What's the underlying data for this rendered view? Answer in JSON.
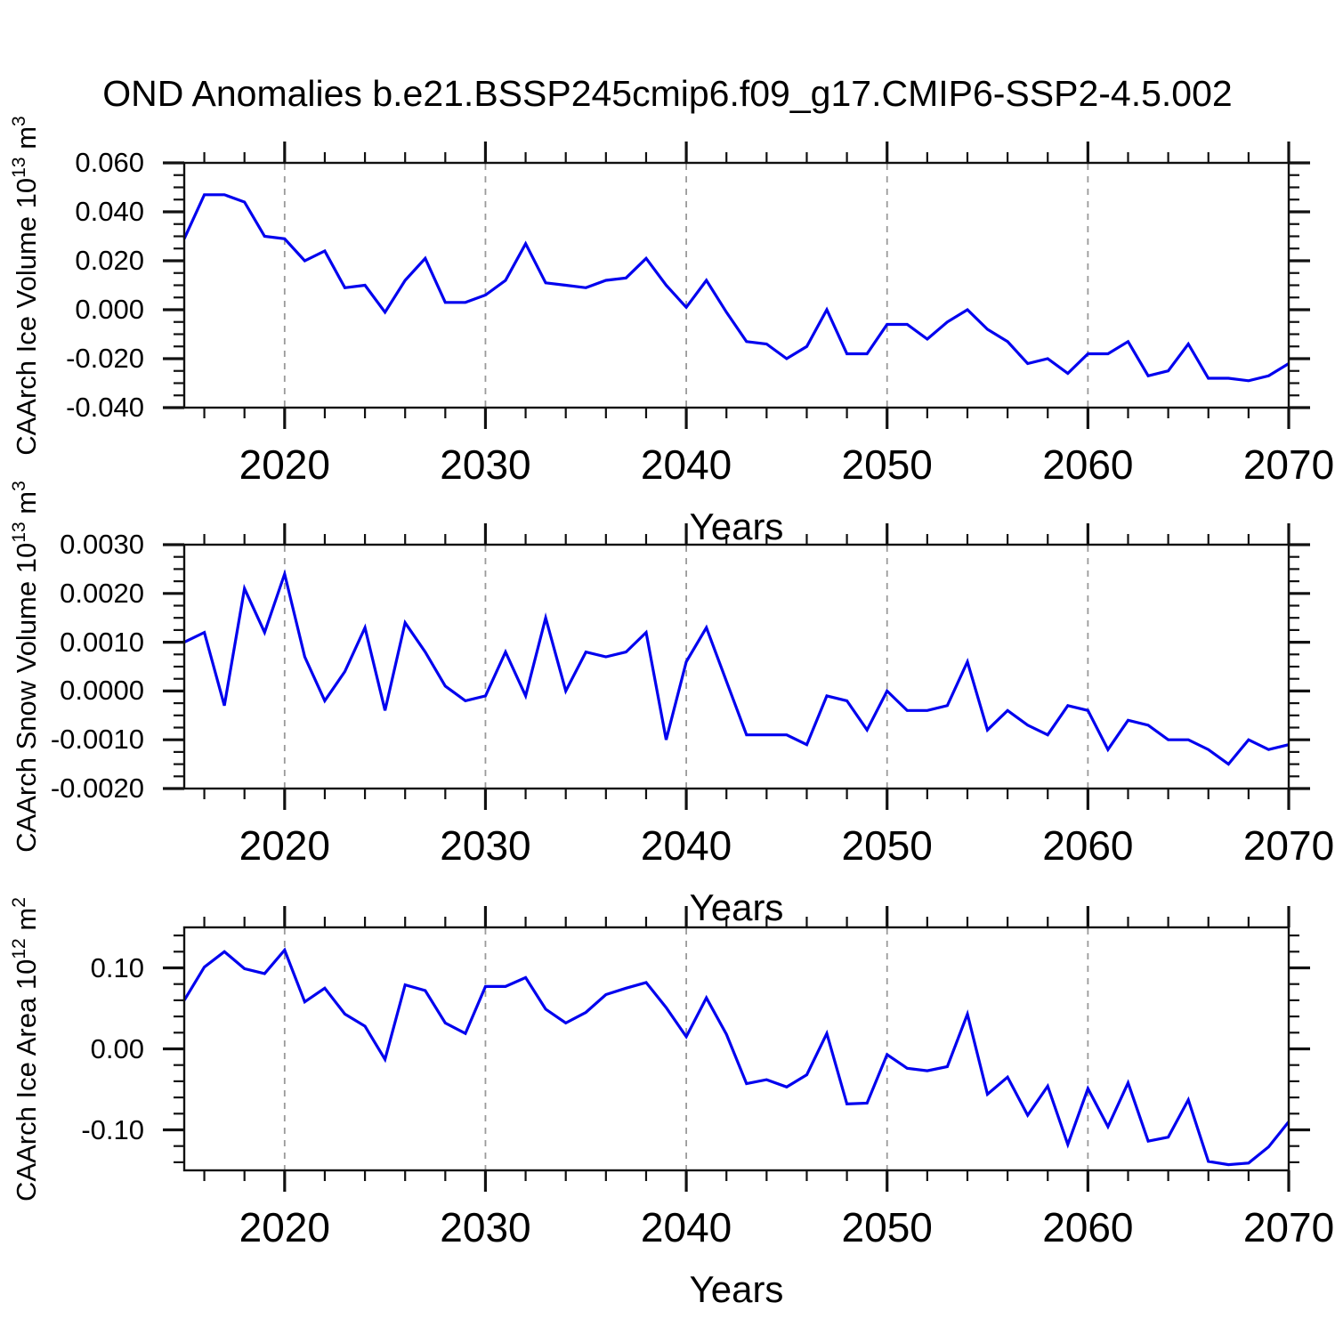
{
  "title": "OND Anomalies b.e21.BSSP245cmip6.f09_g17.CMIP6-SSP2-4.5.002",
  "xlabel": "Years",
  "x_tick_labels": [
    "2020",
    "2030",
    "2040",
    "2050",
    "2060",
    "2070"
  ],
  "x_major_ticks": [
    2020,
    2030,
    2040,
    2050,
    2060,
    2070
  ],
  "x_minor_step": 2,
  "gridlines_at": [
    2020,
    2030,
    2040,
    2050,
    2060
  ],
  "line_color": "#0000EE",
  "grid_color": "#9a9a9a",
  "axis_color": "#111111",
  "years": [
    2015,
    2016,
    2017,
    2018,
    2019,
    2020,
    2021,
    2022,
    2023,
    2024,
    2025,
    2026,
    2027,
    2028,
    2029,
    2030,
    2031,
    2032,
    2033,
    2034,
    2035,
    2036,
    2037,
    2038,
    2039,
    2040,
    2041,
    2042,
    2043,
    2044,
    2045,
    2046,
    2047,
    2048,
    2049,
    2050,
    2051,
    2052,
    2053,
    2054,
    2055,
    2056,
    2057,
    2058,
    2059,
    2060,
    2061,
    2062,
    2063,
    2064,
    2065,
    2066,
    2067,
    2068,
    2069,
    2070
  ],
  "chart_data": [
    {
      "id": "ice-volume",
      "type": "line",
      "ylabel": "CAArch Ice Volume 10^13 m^3",
      "ylabel_parts": {
        "base1": "CAArch Ice Volume 10",
        "sup1": "13",
        "base2": " m",
        "sup2": "3"
      },
      "xlabel": "Years",
      "xlim": [
        2015,
        2070
      ],
      "ylim": [
        -0.04,
        0.06
      ],
      "y_major_ticks": [
        0.06,
        0.04,
        0.02,
        0.0,
        -0.02,
        -0.04
      ],
      "y_tick_labels": [
        "0.060",
        "0.040",
        "0.020",
        "0.000",
        "-0.020",
        "-0.040"
      ],
      "y_minor_step": 0.005,
      "grid": "dashed vertical lines at decades",
      "legend": "none",
      "values": [
        0.029,
        0.047,
        0.047,
        0.044,
        0.03,
        0.029,
        0.02,
        0.024,
        0.009,
        0.01,
        -0.001,
        0.012,
        0.021,
        0.003,
        0.003,
        0.006,
        0.012,
        0.027,
        0.011,
        0.01,
        0.009,
        0.012,
        0.013,
        0.021,
        0.01,
        0.001,
        0.012,
        -0.001,
        -0.013,
        -0.014,
        -0.02,
        -0.015,
        0.0,
        -0.018,
        -0.018,
        -0.006,
        -0.006,
        -0.012,
        -0.005,
        0.0,
        -0.008,
        -0.013,
        -0.022,
        -0.02,
        -0.026,
        -0.018,
        -0.018,
        -0.013,
        -0.027,
        -0.025,
        -0.014,
        -0.028,
        -0.028,
        -0.029,
        -0.027,
        -0.022
      ]
    },
    {
      "id": "snow-volume",
      "type": "line",
      "ylabel": "CAArch Snow Volume 10^13 m^3",
      "ylabel_parts": {
        "base1": "CAArch Snow Volume 10",
        "sup1": "13",
        "base2": " m",
        "sup2": "3"
      },
      "xlabel": "Years",
      "xlim": [
        2015,
        2070
      ],
      "ylim": [
        -0.002,
        0.003
      ],
      "y_major_ticks": [
        0.003,
        0.002,
        0.001,
        0.0,
        -0.001,
        -0.002
      ],
      "y_tick_labels": [
        "0.0030",
        "0.0020",
        "0.0010",
        "0.0000",
        "-0.0010",
        "-0.0020"
      ],
      "y_minor_step": 0.00025,
      "grid": "dashed vertical lines at decades",
      "legend": "none",
      "values": [
        0.001,
        0.0012,
        -0.0003,
        0.0021,
        0.0012,
        0.0024,
        0.0007,
        -0.0002,
        0.0004,
        0.0013,
        -0.0004,
        0.0014,
        0.0008,
        0.0001,
        -0.0002,
        -0.0001,
        0.0008,
        -0.0001,
        0.0015,
        0.0,
        0.0008,
        0.0007,
        0.0008,
        0.0012,
        -0.001,
        0.0006,
        0.0013,
        0.0002,
        -0.0009,
        -0.0009,
        -0.0009,
        -0.0011,
        -0.0001,
        -0.0002,
        -0.0008,
        0.0,
        -0.0004,
        -0.0004,
        -0.0003,
        0.0006,
        -0.0008,
        -0.0004,
        -0.0007,
        -0.0009,
        -0.0003,
        -0.0004,
        -0.0012,
        -0.0006,
        -0.0007,
        -0.001,
        -0.001,
        -0.0012,
        -0.0015,
        -0.001,
        -0.0012,
        -0.0011
      ]
    },
    {
      "id": "ice-area",
      "type": "line",
      "ylabel": "CAArch Ice Area 10^12 m^2",
      "ylabel_parts": {
        "base1": "CAArch Ice Area 10",
        "sup1": "12",
        "base2": " m",
        "sup2": "2"
      },
      "xlabel": "Years",
      "xlim": [
        2015,
        2070
      ],
      "ylim": [
        -0.15,
        0.15
      ],
      "y_major_ticks": [
        0.1,
        0.0,
        -0.1
      ],
      "y_tick_labels": [
        "0.10",
        "0.00",
        "-0.10"
      ],
      "y_minor_step": 0.02,
      "grid": "dashed vertical lines at decades",
      "legend": "none",
      "values": [
        0.06,
        0.101,
        0.12,
        0.099,
        0.093,
        0.122,
        0.058,
        0.075,
        0.043,
        0.028,
        -0.013,
        0.079,
        0.072,
        0.032,
        0.019,
        0.077,
        0.077,
        0.088,
        0.049,
        0.032,
        0.045,
        0.067,
        0.075,
        0.082,
        0.051,
        0.015,
        0.063,
        0.018,
        -0.043,
        -0.038,
        -0.047,
        -0.032,
        0.019,
        -0.068,
        -0.067,
        -0.007,
        -0.024,
        -0.027,
        -0.022,
        0.043,
        -0.056,
        -0.035,
        -0.082,
        -0.046,
        -0.118,
        -0.049,
        -0.096,
        -0.042,
        -0.114,
        -0.109,
        -0.063,
        -0.139,
        -0.143,
        -0.141,
        -0.121,
        -0.09
      ]
    }
  ]
}
